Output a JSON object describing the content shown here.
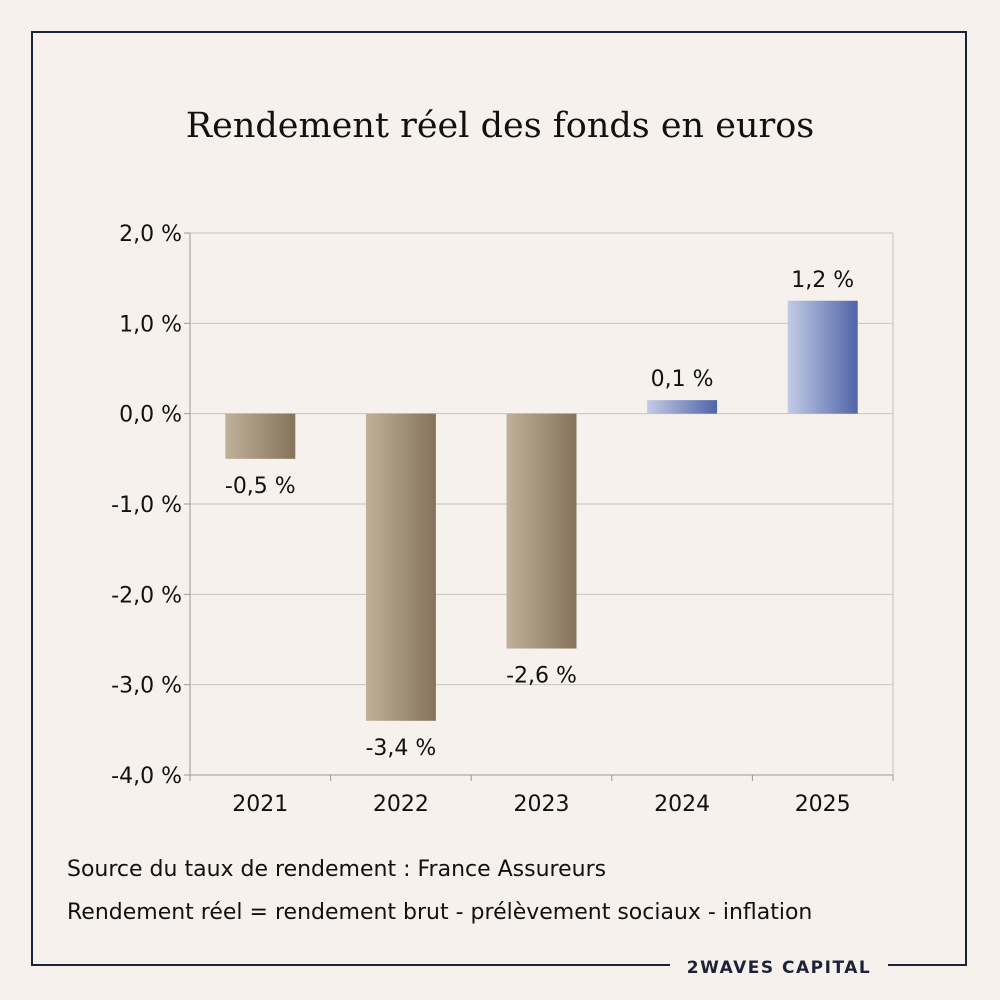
{
  "chart_data": {
    "type": "bar",
    "title": "Rendement réel des fonds en euros",
    "categories": [
      "2021",
      "2022",
      "2023",
      "2024",
      "2025"
    ],
    "values": [
      -0.5,
      -3.4,
      -2.6,
      0.15,
      1.25
    ],
    "data_labels": [
      "-0,5 %",
      "-3,4 %",
      "-2,6 %",
      "0,1 %",
      "1,2 %"
    ],
    "ylim": [
      -4,
      2
    ],
    "yticks": [
      2,
      1,
      0,
      -1,
      -2,
      -3,
      -4
    ],
    "ytick_labels": [
      "2,0 %",
      "1,0 %",
      "0,0 %",
      "-1,0 %",
      "-2,0 %",
      "-3,0 %",
      "-4,0 %"
    ],
    "xlabel": "",
    "ylabel": "",
    "grid": true,
    "colors": {
      "negative": [
        "#c0b19b",
        "#85735a"
      ],
      "positive": [
        "#c3cbe6",
        "#5065a8"
      ]
    }
  },
  "notes": {
    "source": "Source du taux de rendement : France Assureurs",
    "definition": "Rendement réel = rendement brut - prélèvement sociaux - inflation"
  },
  "brand": "2WAVES CAPITAL"
}
